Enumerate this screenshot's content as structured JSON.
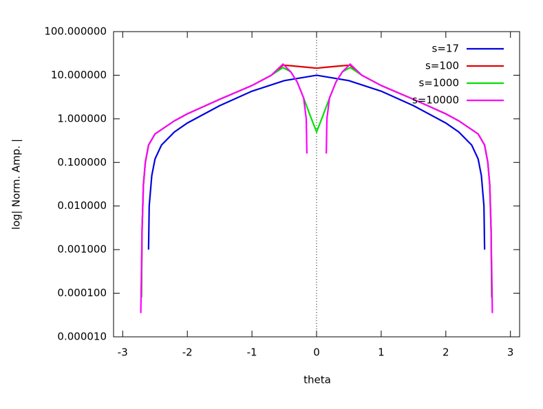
{
  "chart_data": {
    "type": "line",
    "xlabel": "theta",
    "ylabel": "log| Norm. Amp. |",
    "xlim": [
      -3.14159,
      3.14159
    ],
    "xticks": [
      -3,
      -2,
      -1,
      0,
      1,
      2,
      3
    ],
    "ylim": [
      1e-05,
      100
    ],
    "ylog": true,
    "yticks": [
      {
        "value": 1e-05,
        "label": "0.000010"
      },
      {
        "value": 0.0001,
        "label": "0.000100"
      },
      {
        "value": 0.001,
        "label": "0.001000"
      },
      {
        "value": 0.01,
        "label": "0.010000"
      },
      {
        "value": 0.1,
        "label": "0.100000"
      },
      {
        "value": 1,
        "label": "1.000000"
      },
      {
        "value": 10,
        "label": "10.000000"
      },
      {
        "value": 100,
        "label": "100.000000"
      }
    ],
    "x_zeroaxis": true,
    "legend": "top-right",
    "series": [
      {
        "name": "s=17",
        "color": "#0000e0",
        "x": [
          -2.6,
          -2.59,
          -2.55,
          -2.5,
          -2.4,
          -2.2,
          -2,
          -1.5,
          -1,
          -0.5,
          0,
          0.5,
          1,
          1.5,
          2,
          2.2,
          2.4,
          2.5,
          2.55,
          2.59,
          2.6
        ],
        "values": [
          0.001,
          0.01,
          0.05,
          0.12,
          0.25,
          0.5,
          0.8,
          2.0,
          4.3,
          7.5,
          10,
          7.5,
          4.3,
          2.0,
          0.8,
          0.5,
          0.25,
          0.12,
          0.05,
          0.01,
          0.001
        ]
      },
      {
        "name": "s=100",
        "color": "#e00000",
        "x": [
          -2.71,
          -2.7,
          -2.68,
          -2.65,
          -2.6,
          -2.5,
          -2.2,
          -2,
          -1.5,
          -1,
          -0.7,
          -0.52,
          -0.4,
          -0.3,
          -0.1,
          0,
          0.1,
          0.3,
          0.4,
          0.52,
          0.7,
          1,
          1.5,
          2,
          2.2,
          2.5,
          2.6,
          2.65,
          2.68,
          2.7,
          2.71
        ],
        "values": [
          8e-05,
          0.003,
          0.03,
          0.1,
          0.25,
          0.45,
          0.9,
          1.3,
          2.8,
          5.8,
          10,
          17,
          16.5,
          16,
          15,
          14.5,
          15,
          16,
          16.5,
          17,
          10,
          5.8,
          2.8,
          1.3,
          0.9,
          0.45,
          0.25,
          0.1,
          0.03,
          0.003,
          8e-05
        ]
      },
      {
        "name": "s=1000",
        "color": "#00e000",
        "x": [
          -2.71,
          -2.7,
          -2.68,
          -2.65,
          -2.6,
          -2.5,
          -2.2,
          -2,
          -1.5,
          -1,
          -0.7,
          -0.52,
          -0.4,
          -0.3,
          -0.2,
          -0.1,
          0,
          0.1,
          0.2,
          0.3,
          0.4,
          0.52,
          0.7,
          1,
          1.5,
          2,
          2.2,
          2.5,
          2.6,
          2.65,
          2.68,
          2.7,
          2.71
        ],
        "values": [
          8e-05,
          0.003,
          0.03,
          0.1,
          0.25,
          0.45,
          0.9,
          1.3,
          2.8,
          5.8,
          10,
          15,
          12,
          7,
          3,
          1.2,
          0.5,
          1.2,
          3,
          7,
          12,
          15,
          10,
          5.8,
          2.8,
          1.3,
          0.9,
          0.45,
          0.25,
          0.1,
          0.03,
          0.003,
          8e-05
        ]
      },
      {
        "name": "s=10000",
        "color": "#ff00ff",
        "x": [
          -2.72,
          -2.7,
          -2.68,
          -2.65,
          -2.6,
          -2.5,
          -2.2,
          -2,
          -1.5,
          -1,
          -0.7,
          -0.52,
          -0.4,
          -0.3,
          -0.2,
          -0.16,
          -0.15,
          0,
          0.15,
          0.16,
          0.2,
          0.3,
          0.4,
          0.52,
          0.7,
          1,
          1.5,
          2,
          2.2,
          2.5,
          2.6,
          2.65,
          2.68,
          2.7,
          2.72
        ],
        "values": [
          3.5e-05,
          0.003,
          0.03,
          0.1,
          0.25,
          0.45,
          0.9,
          1.3,
          2.8,
          5.8,
          10,
          18,
          12,
          7,
          3,
          1,
          0.16,
          null,
          0.16,
          1,
          3,
          7,
          12,
          18,
          10,
          5.8,
          2.8,
          1.3,
          0.9,
          0.45,
          0.25,
          0.1,
          0.03,
          0.003,
          3.5e-05
        ]
      }
    ]
  }
}
